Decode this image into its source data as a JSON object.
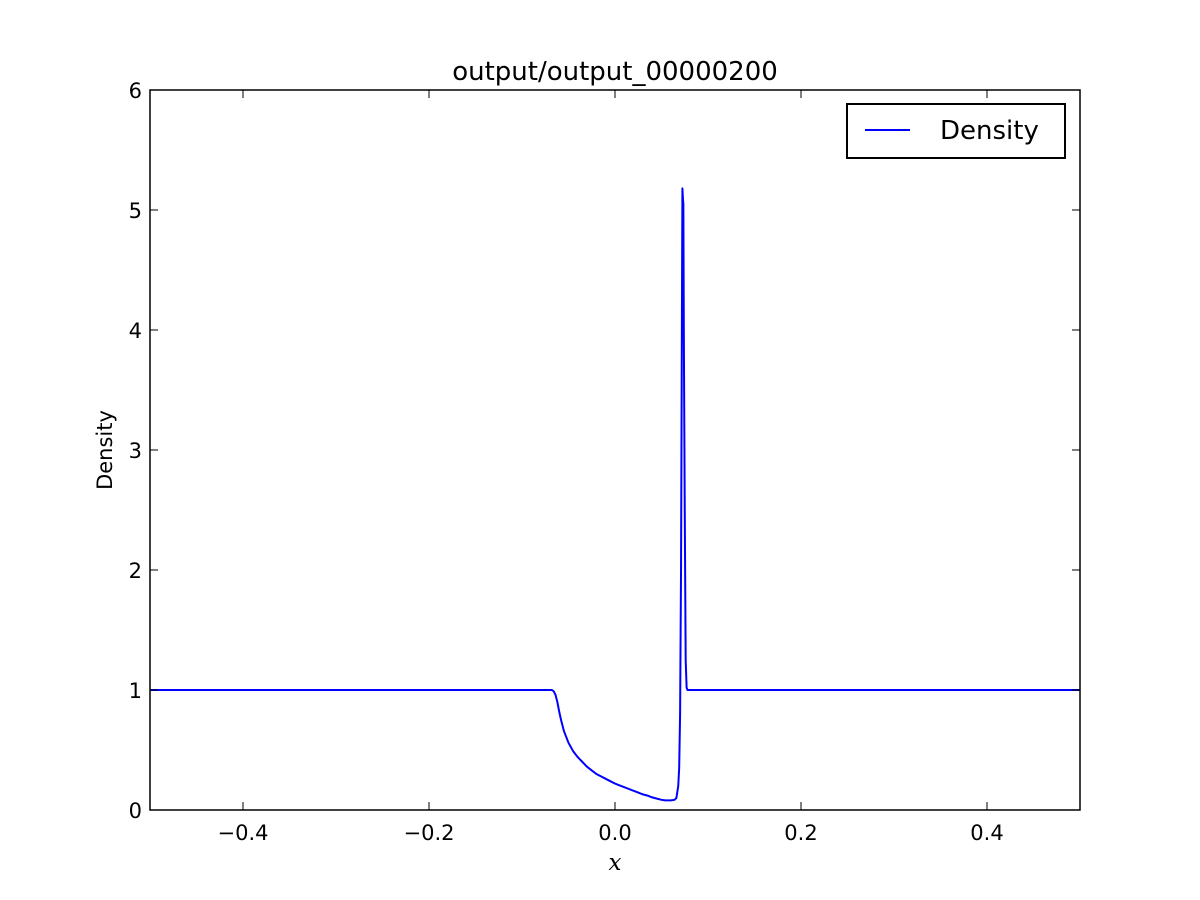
{
  "chart_data": {
    "type": "line",
    "title": "output/output_00000200",
    "xlabel": "x",
    "ylabel": "Density",
    "xlim": [
      -0.5,
      0.5
    ],
    "ylim": [
      0,
      6
    ],
    "xticks": [
      -0.4,
      -0.2,
      0.0,
      0.2,
      0.4
    ],
    "xtick_labels": [
      "−0.4",
      "−0.2",
      "0.0",
      "0.2",
      "0.4"
    ],
    "yticks": [
      0,
      1,
      2,
      3,
      4,
      5,
      6
    ],
    "ytick_labels": [
      "0",
      "1",
      "2",
      "3",
      "4",
      "5",
      "6"
    ],
    "grid": false,
    "legend_position": "top-right",
    "series": [
      {
        "name": "Density",
        "color": "#0000ff",
        "x": [
          -0.5,
          -0.068,
          -0.066,
          -0.064,
          -0.062,
          -0.06,
          -0.058,
          -0.055,
          -0.05,
          -0.045,
          -0.04,
          -0.035,
          -0.03,
          -0.025,
          -0.02,
          -0.015,
          -0.01,
          -0.005,
          0.0,
          0.005,
          0.01,
          0.015,
          0.02,
          0.025,
          0.03,
          0.035,
          0.04,
          0.045,
          0.05,
          0.054,
          0.06,
          0.064,
          0.066,
          0.068,
          0.069,
          0.07,
          0.071,
          0.072,
          0.0725,
          0.073,
          0.0735,
          0.074,
          0.075,
          0.076,
          0.077,
          0.078,
          0.079,
          0.08,
          0.5
        ],
        "y": [
          1.0,
          1.0,
          0.99,
          0.96,
          0.9,
          0.82,
          0.75,
          0.66,
          0.56,
          0.49,
          0.44,
          0.4,
          0.36,
          0.33,
          0.3,
          0.28,
          0.26,
          0.24,
          0.22,
          0.205,
          0.19,
          0.175,
          0.16,
          0.145,
          0.13,
          0.12,
          0.105,
          0.095,
          0.085,
          0.08,
          0.08,
          0.085,
          0.1,
          0.2,
          0.35,
          0.8,
          2.0,
          4.2,
          5.18,
          5.1,
          5.05,
          4.0,
          2.5,
          1.25,
          1.02,
          1.0,
          1.0,
          1.0,
          1.0
        ]
      }
    ]
  }
}
